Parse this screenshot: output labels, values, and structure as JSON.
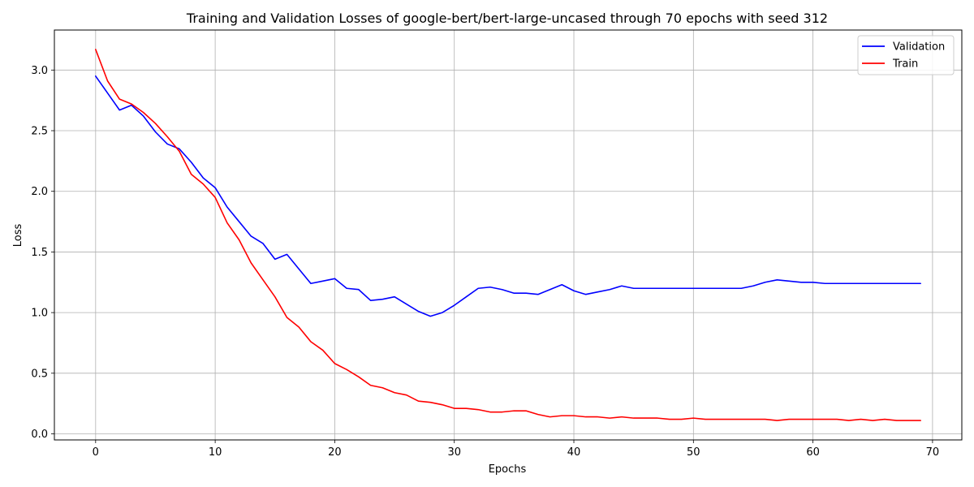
{
  "chart_data": {
    "type": "line",
    "title": "Training and Validation Losses of google-bert/bert-large-uncased through 70 epochs with seed 312",
    "xlabel": "Epochs",
    "ylabel": "Loss",
    "xlim": [
      -3.45,
      72.45
    ],
    "ylim": [
      -0.05,
      3.33
    ],
    "xticks": [
      0,
      10,
      20,
      30,
      40,
      50,
      60,
      70
    ],
    "xtick_labels": [
      "0",
      "10",
      "20",
      "30",
      "40",
      "50",
      "60",
      "70"
    ],
    "yticks": [
      0.0,
      0.5,
      1.0,
      1.5,
      2.0,
      2.5,
      3.0
    ],
    "ytick_labels": [
      "0.0",
      "0.5",
      "1.0",
      "1.5",
      "2.0",
      "2.5",
      "3.0"
    ],
    "grid": true,
    "legend_position": "top-right",
    "x": [
      0,
      1,
      2,
      3,
      4,
      5,
      6,
      7,
      8,
      9,
      10,
      11,
      12,
      13,
      14,
      15,
      16,
      17,
      18,
      19,
      20,
      21,
      22,
      23,
      24,
      25,
      26,
      27,
      28,
      29,
      30,
      31,
      32,
      33,
      34,
      35,
      36,
      37,
      38,
      39,
      40,
      41,
      42,
      43,
      44,
      45,
      46,
      47,
      48,
      49,
      50,
      51,
      52,
      53,
      54,
      55,
      56,
      57,
      58,
      59,
      60,
      61,
      62,
      63,
      64,
      65,
      66,
      67,
      68,
      69
    ],
    "series": [
      {
        "name": "Validation",
        "color": "#0000ff",
        "values": [
          2.95,
          2.81,
          2.67,
          2.71,
          2.62,
          2.49,
          2.39,
          2.35,
          2.24,
          2.11,
          2.03,
          1.87,
          1.75,
          1.63,
          1.57,
          1.44,
          1.48,
          1.36,
          1.24,
          1.26,
          1.28,
          1.2,
          1.19,
          1.1,
          1.11,
          1.13,
          1.07,
          1.01,
          0.97,
          1.0,
          1.06,
          1.13,
          1.2,
          1.21,
          1.19,
          1.16,
          1.16,
          1.15,
          1.19,
          1.23,
          1.18,
          1.15,
          1.17,
          1.19,
          1.22,
          1.2,
          1.2,
          1.2,
          1.2,
          1.2,
          1.2,
          1.2,
          1.2,
          1.2,
          1.2,
          1.22,
          1.25,
          1.27,
          1.26,
          1.25,
          1.25,
          1.24,
          1.24,
          1.24,
          1.24,
          1.24,
          1.24,
          1.24,
          1.24,
          1.24
        ]
      },
      {
        "name": "Train",
        "color": "#ff0000",
        "values": [
          3.17,
          2.91,
          2.76,
          2.72,
          2.65,
          2.56,
          2.45,
          2.33,
          2.14,
          2.06,
          1.95,
          1.74,
          1.6,
          1.41,
          1.27,
          1.13,
          0.96,
          0.88,
          0.76,
          0.69,
          0.58,
          0.53,
          0.47,
          0.4,
          0.38,
          0.34,
          0.32,
          0.27,
          0.26,
          0.24,
          0.21,
          0.21,
          0.2,
          0.18,
          0.18,
          0.19,
          0.19,
          0.16,
          0.14,
          0.15,
          0.15,
          0.14,
          0.14,
          0.13,
          0.14,
          0.13,
          0.13,
          0.13,
          0.12,
          0.12,
          0.13,
          0.12,
          0.12,
          0.12,
          0.12,
          0.12,
          0.12,
          0.11,
          0.12,
          0.12,
          0.12,
          0.12,
          0.12,
          0.11,
          0.12,
          0.11,
          0.12,
          0.11,
          0.11,
          0.11
        ]
      }
    ]
  },
  "colors": {
    "grid": "#b0b0b0",
    "axes": "#000000",
    "legend_border": "#cccccc"
  }
}
